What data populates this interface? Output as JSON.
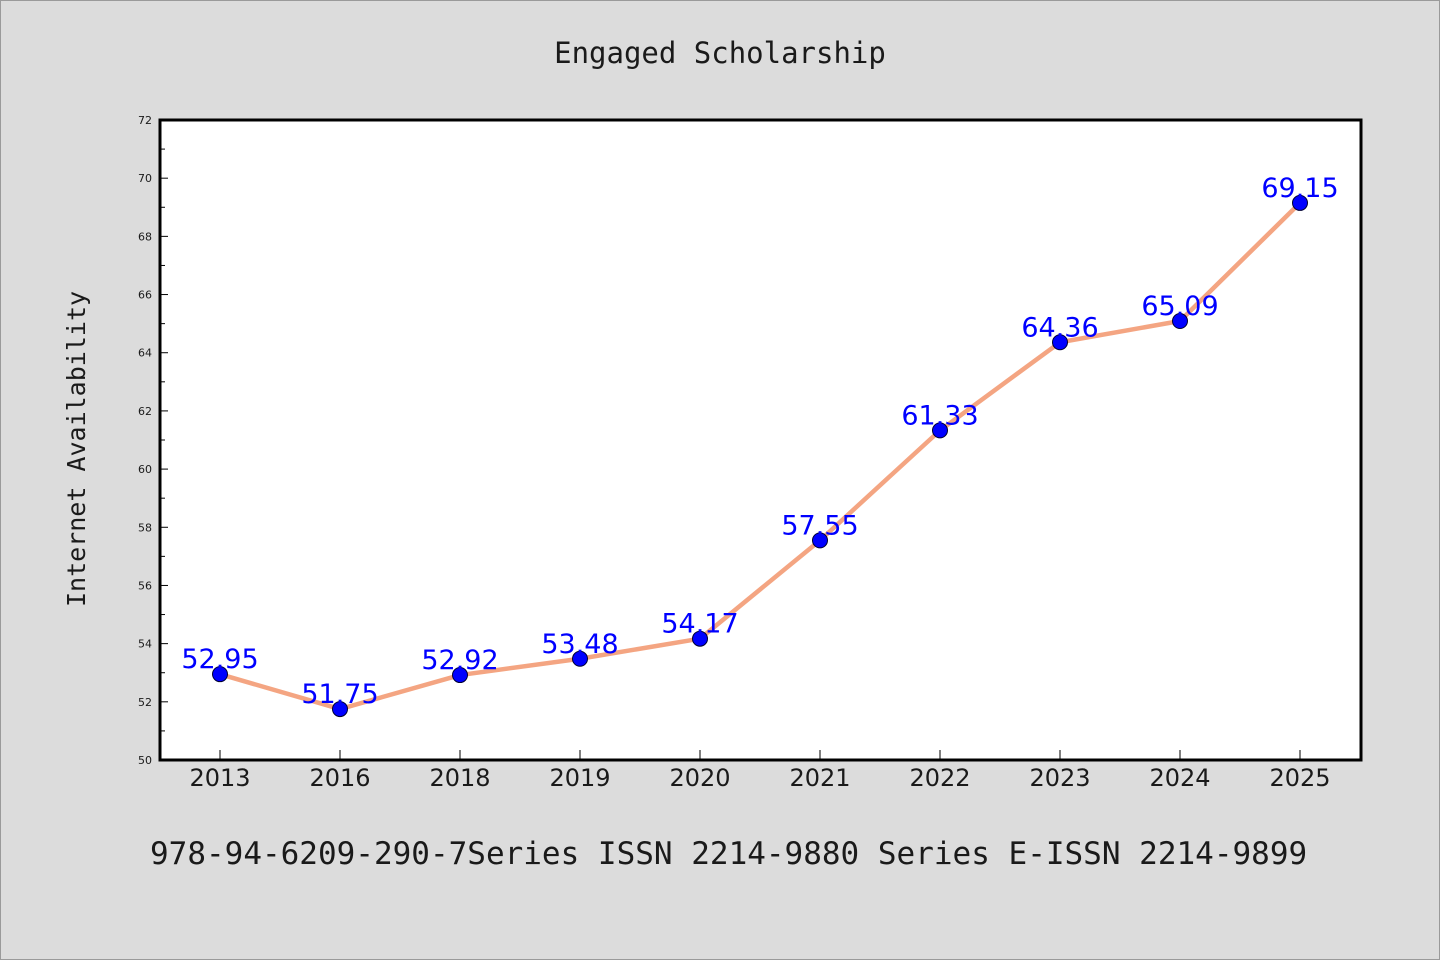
{
  "chart_data": {
    "type": "line",
    "title": "Engaged Scholarship",
    "xlabel": "",
    "ylabel": "Internet Availability",
    "categories": [
      "2013",
      "2016",
      "2018",
      "2019",
      "2020",
      "2021",
      "2022",
      "2023",
      "2024",
      "2025"
    ],
    "series": [
      {
        "values": [
          52.95,
          51.75,
          52.92,
          53.48,
          54.17,
          57.55,
          61.33,
          64.36,
          65.09,
          69.15
        ]
      }
    ],
    "data_labels": [
      "52.95",
      "51.75",
      "52.92",
      "53.48",
      "54.17",
      "57.55",
      "61.33",
      "64.36",
      "65.09",
      "69.15"
    ],
    "ylim": [
      50,
      72
    ],
    "yticks": [
      "50",
      "52",
      "54",
      "56",
      "58",
      "60",
      "62",
      "64",
      "66",
      "68",
      "70",
      "72"
    ],
    "grid": false,
    "legend": "none",
    "colors": {
      "background": "#dcdcdc",
      "plot_area": "#ffffff",
      "line": "#f4a582",
      "marker": "#0000ff",
      "data_label": "#0000ff",
      "text": "#1a1a1a"
    }
  },
  "footer_text": "978-94-6209-290-7Series ISSN 2214-9880 Series E-ISSN 2214-9899"
}
